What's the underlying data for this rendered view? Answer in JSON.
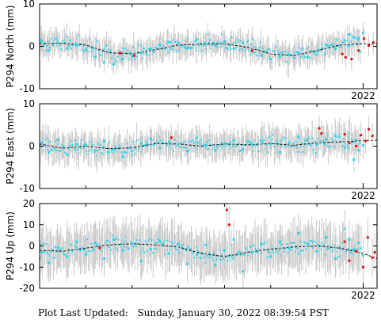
{
  "footer": {
    "label": "Plot Last Updated:",
    "timestamp": "Sunday, January 30, 2022 08:39:54 PST"
  },
  "colors": {
    "points": "#22d3ee",
    "recent_points": "#e01010",
    "error_bars": "#c8c8c8",
    "model_line": "#000000",
    "frame": "#000000"
  },
  "chart_data": [
    {
      "type": "scatter",
      "station": "P294",
      "component": "North",
      "ylabel": "P294 North (mm)",
      "ylim": [
        -10,
        10
      ],
      "yticks": [
        -10,
        0,
        10
      ],
      "xlim": [
        2015.0,
        2022.3
      ],
      "xtick_values": [
        2022.0
      ],
      "xtick_labels": [
        "2022"
      ],
      "error_bar_mm": 2.5,
      "model_line": {
        "style": "dashed",
        "x": [
          2015.0,
          2015.5,
          2016.0,
          2016.5,
          2017.0,
          2017.5,
          2018.0,
          2018.5,
          2019.0,
          2019.5,
          2020.0,
          2020.5,
          2021.0,
          2021.5,
          2022.0,
          2022.3
        ],
        "y": [
          0.6,
          0.7,
          0.3,
          -1.5,
          -1.8,
          -0.8,
          0.3,
          0.5,
          0.6,
          -0.2,
          -1.8,
          -2.2,
          -1.0,
          0.3,
          0.6,
          0.5
        ]
      },
      "series": [
        {
          "name": "daily",
          "color": "#22d3ee",
          "x": [
            2015.05,
            2015.2,
            2015.4,
            2015.6,
            2015.8,
            2016.0,
            2016.2,
            2016.4,
            2016.6,
            2016.8,
            2017.0,
            2017.2,
            2017.4,
            2017.6,
            2017.8,
            2018.0,
            2018.2,
            2018.4,
            2018.6,
            2018.8,
            2019.0,
            2019.2,
            2019.4,
            2019.6,
            2019.8,
            2020.0,
            2020.2,
            2020.4,
            2020.6,
            2020.8,
            2021.0,
            2021.2,
            2021.4,
            2021.6,
            2021.7,
            2021.8,
            2021.9,
            2022.0
          ],
          "y": [
            1.2,
            -1.0,
            0.8,
            -0.5,
            0.4,
            -0.8,
            -2.5,
            -3.8,
            -4.2,
            -3.0,
            -2.4,
            -1.5,
            -0.6,
            0.3,
            1.0,
            0.8,
            -0.4,
            1.6,
            0.5,
            0.2,
            1.2,
            -0.5,
            0.8,
            -1.4,
            -2.2,
            -3.0,
            -2.4,
            -2.0,
            -1.6,
            -2.6,
            -1.2,
            0.4,
            -0.6,
            1.4,
            2.8,
            2.2,
            1.6,
            3.2
          ]
        },
        {
          "name": "recent",
          "color": "#e01010",
          "x": [
            2016.75,
            2017.05,
            2019.6,
            2021.55,
            2021.62,
            2021.75,
            2021.9,
            2022.02,
            2022.12,
            2022.22
          ],
          "y": [
            -1.6,
            -2.2,
            -1.0,
            -1.8,
            -2.6,
            -3.0,
            -1.0,
            1.8,
            0.2,
            0.9
          ]
        }
      ]
    },
    {
      "type": "scatter",
      "station": "P294",
      "component": "East",
      "ylabel": "P294 East (mm)",
      "ylim": [
        -10,
        10
      ],
      "yticks": [
        -10,
        0,
        10
      ],
      "xlim": [
        2015.0,
        2022.3
      ],
      "xtick_values": [
        2022.0
      ],
      "xtick_labels": [
        "2022"
      ],
      "error_bar_mm": 3.0,
      "model_line": {
        "style": "dashed",
        "x": [
          2015.0,
          2015.5,
          2016.0,
          2016.5,
          2017.0,
          2017.5,
          2018.0,
          2018.5,
          2019.0,
          2019.5,
          2020.0,
          2020.5,
          2021.0,
          2021.5,
          2022.0,
          2022.3
        ],
        "y": [
          0.5,
          -0.5,
          0.0,
          -0.6,
          -0.4,
          0.6,
          0.5,
          0.0,
          0.5,
          0.3,
          0.6,
          0.2,
          0.8,
          1.0,
          1.3,
          1.4
        ]
      },
      "series": [
        {
          "name": "daily",
          "color": "#22d3ee",
          "x": [
            2015.05,
            2015.2,
            2015.4,
            2015.6,
            2015.8,
            2016.0,
            2016.2,
            2016.4,
            2016.6,
            2016.8,
            2017.0,
            2017.2,
            2017.4,
            2017.6,
            2017.8,
            2018.0,
            2018.2,
            2018.4,
            2018.6,
            2018.8,
            2019.0,
            2019.2,
            2019.4,
            2019.6,
            2019.8,
            2020.0,
            2020.2,
            2020.4,
            2020.6,
            2020.8,
            2021.0,
            2021.2,
            2021.4,
            2021.6,
            2021.7,
            2021.8,
            2021.9,
            2022.0
          ],
          "y": [
            0.8,
            -1.5,
            1.5,
            -2.0,
            0.4,
            0.2,
            -1.0,
            1.2,
            -0.8,
            -2.5,
            -1.2,
            0.6,
            1.8,
            -0.4,
            1.0,
            0.5,
            -1.2,
            2.0,
            0.2,
            -1.0,
            0.6,
            1.4,
            -0.8,
            0.4,
            1.2,
            0.6,
            -1.4,
            0.8,
            2.2,
            1.6,
            0.4,
            1.6,
            2.4,
            -0.4,
            0.8,
            -3.2,
            -1.0,
            0.2
          ]
        },
        {
          "name": "recent",
          "color": "#e01010",
          "x": [
            2017.85,
            2021.05,
            2021.1,
            2021.6,
            2021.7,
            2021.85,
            2021.95,
            2022.05,
            2022.12,
            2022.2
          ],
          "y": [
            2.0,
            4.2,
            3.0,
            2.8,
            0.8,
            0.0,
            2.6,
            1.2,
            4.0,
            2.4
          ]
        }
      ]
    },
    {
      "type": "scatter",
      "station": "P294",
      "component": "Up",
      "ylabel": "P294 Up (mm)",
      "ylim": [
        -20,
        20
      ],
      "yticks": [
        -20,
        -10,
        0,
        10,
        20
      ],
      "xlim": [
        2015.0,
        2022.3
      ],
      "xtick_values": [
        2022.0
      ],
      "xtick_labels": [
        "2022"
      ],
      "error_bar_mm": 9.0,
      "model_line": {
        "style": "dashed",
        "x": [
          2015.0,
          2015.5,
          2016.0,
          2016.5,
          2017.0,
          2017.5,
          2018.0,
          2018.5,
          2019.0,
          2019.5,
          2020.0,
          2020.5,
          2021.0,
          2021.5,
          2022.0,
          2022.3
        ],
        "y": [
          -2.0,
          -2.5,
          -1.0,
          0.5,
          1.0,
          0.5,
          -0.5,
          -3.5,
          -5.0,
          -3.0,
          -1.5,
          -0.5,
          0.0,
          -1.0,
          -3.5,
          -6.0
        ]
      },
      "series": [
        {
          "name": "daily",
          "color": "#22d3ee",
          "x": [
            2015.05,
            2015.2,
            2015.4,
            2015.6,
            2015.8,
            2016.0,
            2016.2,
            2016.4,
            2016.6,
            2016.8,
            2017.0,
            2017.2,
            2017.4,
            2017.6,
            2017.8,
            2018.0,
            2018.2,
            2018.4,
            2018.6,
            2018.8,
            2019.0,
            2019.2,
            2019.4,
            2019.6,
            2019.8,
            2020.0,
            2020.2,
            2020.4,
            2020.6,
            2020.8,
            2021.0,
            2021.2,
            2021.4,
            2021.6,
            2021.7,
            2021.8,
            2021.9,
            2022.0
          ],
          "y": [
            -3.0,
            -8.0,
            -1.0,
            -5.0,
            2.0,
            -4.0,
            1.5,
            -6.0,
            3.0,
            -2.0,
            1.0,
            -7.0,
            -1.5,
            2.5,
            -3.5,
            1.0,
            -8.5,
            -4.0,
            0.5,
            -9.0,
            -2.0,
            3.0,
            -12.0,
            -3.0,
            1.0,
            -5.0,
            2.0,
            -1.0,
            6.0,
            1.0,
            -2.5,
            4.0,
            -6.0,
            8.0,
            3.0,
            -2.0,
            1.5,
            -4.5
          ]
        },
        {
          "name": "recent",
          "color": "#e01010",
          "x": [
            2016.3,
            2019.05,
            2019.1,
            2021.6,
            2021.7,
            2021.85,
            2022.0,
            2022.1,
            2022.2,
            2022.25
          ],
          "y": [
            -1.0,
            17.0,
            10.0,
            2.0,
            -7.0,
            -2.5,
            -10.0,
            4.0,
            -5.5,
            -3.0
          ]
        }
      ]
    }
  ]
}
